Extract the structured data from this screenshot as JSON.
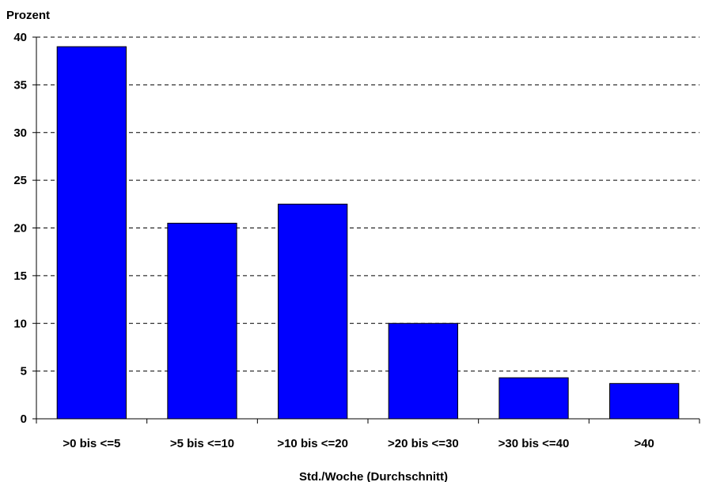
{
  "chart_data": {
    "type": "bar",
    "ylabel": "Prozent",
    "xlabel": "Std./Woche (Durchschnitt)",
    "categories": [
      ">0 bis <=5",
      ">5 bis <=10",
      ">10 bis <=20",
      ">20 bis <=30",
      ">30 bis <=40",
      ">40"
    ],
    "values": [
      39,
      20.5,
      22.5,
      10,
      4.3,
      3.7
    ],
    "ylim": [
      0,
      40
    ],
    "yticks": [
      "0",
      "5",
      "10",
      "15",
      "20",
      "25",
      "30",
      "35",
      "40"
    ],
    "grid": "horizontal-dashed",
    "legend": "none",
    "bar_color": "#0000ff"
  }
}
